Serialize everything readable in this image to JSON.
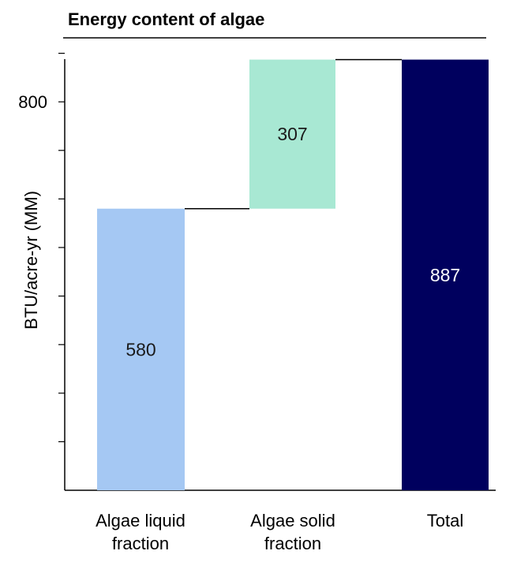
{
  "chart_data": {
    "type": "bar",
    "subtype": "waterfall",
    "title": "Energy content of algae",
    "ylabel": "BTU/acre-yr (MM)",
    "xlabel": "",
    "categories": [
      [
        "Algae liquid",
        "fraction"
      ],
      [
        "Algae solid",
        "fraction"
      ],
      [
        "Total"
      ]
    ],
    "values": [
      580,
      307,
      887
    ],
    "value_labels": [
      "580",
      "307",
      "887"
    ],
    "bases": [
      0,
      580,
      0
    ],
    "colors": [
      "#a5c8f3",
      "#a8e8d3",
      "#00005e"
    ],
    "value_label_colors": [
      "#1a1a1a",
      "#1a1a1a",
      "#ffffff"
    ],
    "ylim": [
      0,
      887
    ],
    "yticks": [
      100,
      200,
      300,
      400,
      500,
      600,
      700,
      800,
      900
    ],
    "ytick_labels_shown": [
      800
    ],
    "grid": false,
    "legend": "none",
    "connectors": true
  }
}
